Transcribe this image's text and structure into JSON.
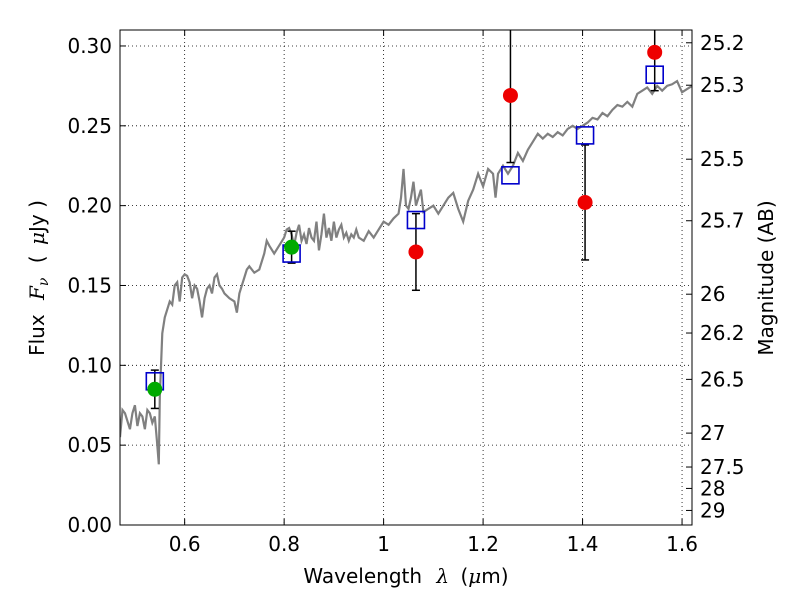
{
  "chart_data": {
    "type": "scatter",
    "title": "",
    "xlabel_text": "Wavelength",
    "xlabel_symbol": "λ",
    "xlabel_unit_open": "(",
    "xlabel_unit_mu": "μ",
    "xlabel_unit_rest": "m)",
    "ylabel_text": "Flux",
    "ylabel_symbol": "F",
    "ylabel_subscript": "ν",
    "ylabel_unit_open": "(",
    "ylabel_unit_mu": "μ",
    "ylabel_unit_rest": "Jy )",
    "y2label": "Magnitude (AB)",
    "xlim": [
      0.47,
      1.62
    ],
    "ylim": [
      0.0,
      0.31
    ],
    "grid": true,
    "x_ticks": [
      0.6,
      0.8,
      1.0,
      1.2,
      1.4,
      1.6
    ],
    "x_tick_labels": [
      "0.6",
      "0.8",
      "1",
      "1.2",
      "1.4",
      "1.6"
    ],
    "y_ticks": [
      0.0,
      0.05,
      0.1,
      0.15,
      0.2,
      0.25,
      0.3
    ],
    "y_tick_labels": [
      "0.00",
      "0.05",
      "0.10",
      "0.15",
      "0.20",
      "0.25",
      "0.30"
    ],
    "mag_ticks": [
      25.2,
      25.3,
      25.5,
      25.7,
      26,
      26.2,
      26.5,
      27,
      27.5,
      28,
      29
    ],
    "mag_tick_labels": [
      "25.2",
      "25.3",
      "25.5",
      "25.7",
      "26",
      "26.2",
      "26.5",
      "27",
      "27.5",
      "28",
      "29"
    ],
    "spectrum_color": "#808080",
    "spectrum": {
      "x": [
        0.47,
        0.475,
        0.48,
        0.485,
        0.49,
        0.495,
        0.5,
        0.505,
        0.51,
        0.515,
        0.52,
        0.525,
        0.53,
        0.535,
        0.54,
        0.545,
        0.548,
        0.55,
        0.555,
        0.56,
        0.565,
        0.57,
        0.575,
        0.58,
        0.585,
        0.59,
        0.595,
        0.6,
        0.605,
        0.61,
        0.615,
        0.62,
        0.625,
        0.63,
        0.635,
        0.64,
        0.645,
        0.65,
        0.655,
        0.66,
        0.665,
        0.67,
        0.675,
        0.68,
        0.69,
        0.7,
        0.705,
        0.71,
        0.715,
        0.72,
        0.725,
        0.73,
        0.74,
        0.75,
        0.755,
        0.76,
        0.765,
        0.77,
        0.78,
        0.79,
        0.8,
        0.805,
        0.81,
        0.815,
        0.82,
        0.825,
        0.83,
        0.835,
        0.84,
        0.845,
        0.85,
        0.855,
        0.86,
        0.865,
        0.87,
        0.875,
        0.88,
        0.885,
        0.89,
        0.895,
        0.9,
        0.905,
        0.91,
        0.915,
        0.92,
        0.925,
        0.93,
        0.935,
        0.94,
        0.945,
        0.95,
        0.96,
        0.97,
        0.98,
        0.99,
        1.0,
        1.01,
        1.02,
        1.03,
        1.035,
        1.04,
        1.045,
        1.05,
        1.055,
        1.06,
        1.065,
        1.07,
        1.075,
        1.08,
        1.09,
        1.1,
        1.11,
        1.12,
        1.13,
        1.14,
        1.15,
        1.16,
        1.17,
        1.18,
        1.19,
        1.2,
        1.21,
        1.22,
        1.225,
        1.23,
        1.24,
        1.25,
        1.26,
        1.27,
        1.28,
        1.29,
        1.3,
        1.31,
        1.32,
        1.33,
        1.34,
        1.35,
        1.36,
        1.37,
        1.38,
        1.39,
        1.4,
        1.41,
        1.42,
        1.43,
        1.44,
        1.45,
        1.46,
        1.47,
        1.48,
        1.49,
        1.5,
        1.51,
        1.52,
        1.53,
        1.54,
        1.55,
        1.56,
        1.57,
        1.58,
        1.59,
        1.6,
        1.61,
        1.62
      ],
      "y": [
        0.055,
        0.072,
        0.07,
        0.065,
        0.06,
        0.07,
        0.075,
        0.062,
        0.07,
        0.068,
        0.06,
        0.072,
        0.07,
        0.064,
        0.068,
        0.05,
        0.038,
        0.08,
        0.12,
        0.13,
        0.135,
        0.14,
        0.138,
        0.15,
        0.152,
        0.14,
        0.155,
        0.157,
        0.156,
        0.152,
        0.142,
        0.15,
        0.148,
        0.14,
        0.13,
        0.142,
        0.148,
        0.15,
        0.145,
        0.155,
        0.157,
        0.15,
        0.148,
        0.145,
        0.142,
        0.14,
        0.133,
        0.145,
        0.15,
        0.155,
        0.16,
        0.162,
        0.158,
        0.16,
        0.165,
        0.17,
        0.178,
        0.175,
        0.17,
        0.175,
        0.18,
        0.185,
        0.186,
        0.182,
        0.175,
        0.183,
        0.188,
        0.178,
        0.182,
        0.176,
        0.186,
        0.18,
        0.178,
        0.19,
        0.172,
        0.182,
        0.195,
        0.18,
        0.186,
        0.178,
        0.19,
        0.18,
        0.185,
        0.188,
        0.18,
        0.183,
        0.178,
        0.182,
        0.18,
        0.185,
        0.18,
        0.178,
        0.184,
        0.18,
        0.185,
        0.19,
        0.188,
        0.192,
        0.195,
        0.205,
        0.223,
        0.2,
        0.198,
        0.205,
        0.215,
        0.2,
        0.205,
        0.21,
        0.196,
        0.198,
        0.2,
        0.195,
        0.2,
        0.205,
        0.208,
        0.198,
        0.19,
        0.203,
        0.21,
        0.22,
        0.212,
        0.223,
        0.22,
        0.205,
        0.22,
        0.225,
        0.22,
        0.225,
        0.233,
        0.228,
        0.235,
        0.24,
        0.245,
        0.242,
        0.245,
        0.243,
        0.246,
        0.244,
        0.248,
        0.25,
        0.248,
        0.25,
        0.252,
        0.255,
        0.254,
        0.258,
        0.256,
        0.26,
        0.263,
        0.262,
        0.265,
        0.262,
        0.27,
        0.272,
        0.274,
        0.27,
        0.275,
        0.272,
        0.275,
        0.276,
        0.278,
        0.271,
        0.273,
        0.275
      ],
      "name": ""
    },
    "series": [
      {
        "name": "",
        "marker": "square-open",
        "color": "#0000cc",
        "x": [
          0.54,
          0.815,
          1.065,
          1.255,
          1.405,
          1.545
        ],
        "y": [
          0.09,
          0.17,
          0.191,
          0.219,
          0.244,
          0.282
        ]
      },
      {
        "name": "",
        "marker": "circle",
        "color": "#00aa00",
        "x": [
          0.54,
          0.815
        ],
        "y": [
          0.085,
          0.174
        ],
        "yerr": [
          0.012,
          0.01
        ]
      },
      {
        "name": "",
        "marker": "circle",
        "color": "#ee0000",
        "x": [
          1.065,
          1.255,
          1.405,
          1.545
        ],
        "y": [
          0.171,
          0.269,
          0.202,
          0.296
        ],
        "yerr": [
          0.024,
          0.042,
          0.036,
          0.024
        ]
      }
    ]
  }
}
